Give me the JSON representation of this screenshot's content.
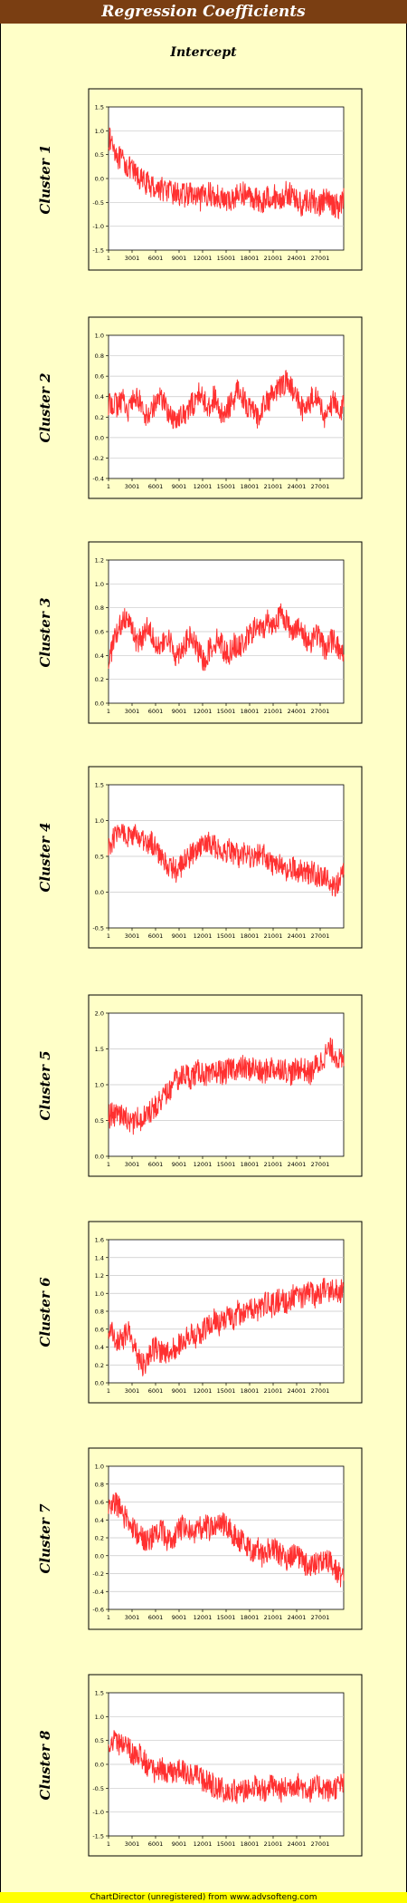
{
  "title": "Regression Coefficients",
  "subtitle": "Intercept",
  "footer": "ChartDirector (unregistered) from www.advsofteng.com",
  "colors": {
    "line": "#ff3030",
    "frame_bg": "#ffffc8",
    "title_bg": "#7a3e12"
  },
  "chart_data": [
    {
      "type": "line",
      "name": "Cluster 1",
      "x_ticks": [
        "1",
        "3001",
        "6001",
        "9001",
        "12001",
        "15001",
        "18001",
        "21001",
        "24001",
        "27001"
      ],
      "ylim": [
        -1.5,
        1.5
      ],
      "y_ticks": [
        "1.5",
        "1.0",
        "0.5",
        "0.0",
        "-0.5",
        "-1.0",
        "-1.5"
      ],
      "grid": true,
      "values": [
        0.85,
        0.7,
        0.45,
        0.35,
        0.25,
        0.15,
        0.05,
        -0.05,
        -0.1,
        -0.15,
        -0.2,
        -0.2,
        -0.25,
        -0.3,
        -0.3,
        -0.35,
        -0.35,
        -0.3,
        -0.4,
        -0.45,
        -0.35,
        -0.3,
        -0.4,
        -0.35,
        -0.45,
        -0.5,
        -0.4,
        -0.35,
        -0.3,
        -0.35,
        -0.4,
        -0.45,
        -0.5,
        -0.4,
        -0.35,
        -0.4,
        -0.45,
        -0.3,
        -0.35,
        -0.4,
        -0.55,
        -0.5,
        -0.45,
        -0.5,
        -0.55,
        -0.45,
        -0.5,
        -0.55,
        -0.6,
        -0.4
      ]
    },
    {
      "type": "line",
      "name": "Cluster 2",
      "x_ticks": [
        "1",
        "3001",
        "6001",
        "9001",
        "12001",
        "15001",
        "18001",
        "21001",
        "24001",
        "27001"
      ],
      "ylim": [
        -0.4,
        1.0
      ],
      "y_ticks": [
        "1.0",
        "0.8",
        "0.6",
        "0.4",
        "0.2",
        "0.0",
        "-0.2",
        "-0.4"
      ],
      "grid": true,
      "values": [
        0.3,
        0.35,
        0.3,
        0.4,
        0.25,
        0.35,
        0.4,
        0.3,
        0.2,
        0.3,
        0.35,
        0.4,
        0.3,
        0.2,
        0.15,
        0.25,
        0.2,
        0.3,
        0.35,
        0.45,
        0.35,
        0.3,
        0.4,
        0.25,
        0.2,
        0.3,
        0.35,
        0.5,
        0.4,
        0.3,
        0.25,
        0.2,
        0.3,
        0.35,
        0.4,
        0.45,
        0.5,
        0.55,
        0.5,
        0.4,
        0.3,
        0.25,
        0.35,
        0.45,
        0.3,
        0.2,
        0.3,
        0.35,
        0.25,
        0.3
      ]
    },
    {
      "type": "line",
      "name": "Cluster 3",
      "x_ticks": [
        "1",
        "3001",
        "6001",
        "9001",
        "12001",
        "15001",
        "18001",
        "21001",
        "24001",
        "27001"
      ],
      "ylim": [
        0.0,
        1.2
      ],
      "y_ticks": [
        "1.2",
        "1.0",
        "0.8",
        "0.6",
        "0.4",
        "0.2",
        "0.0"
      ],
      "grid": true,
      "values": [
        0.35,
        0.5,
        0.6,
        0.7,
        0.75,
        0.6,
        0.5,
        0.55,
        0.65,
        0.6,
        0.5,
        0.45,
        0.55,
        0.5,
        0.4,
        0.45,
        0.5,
        0.55,
        0.5,
        0.4,
        0.35,
        0.45,
        0.5,
        0.55,
        0.45,
        0.4,
        0.5,
        0.45,
        0.5,
        0.55,
        0.6,
        0.65,
        0.6,
        0.7,
        0.65,
        0.7,
        0.75,
        0.7,
        0.6,
        0.65,
        0.6,
        0.55,
        0.5,
        0.6,
        0.55,
        0.45,
        0.5,
        0.55,
        0.45,
        0.4
      ]
    },
    {
      "type": "line",
      "name": "Cluster 4",
      "x_ticks": [
        "1",
        "3001",
        "6001",
        "9001",
        "12001",
        "15001",
        "18001",
        "21001",
        "24001",
        "27001"
      ],
      "ylim": [
        -0.5,
        1.5
      ],
      "y_ticks": [
        "1.5",
        "1.0",
        "0.5",
        "0.0",
        "-0.5"
      ],
      "grid": true,
      "values": [
        0.6,
        0.75,
        0.8,
        0.85,
        0.8,
        0.75,
        0.8,
        0.7,
        0.65,
        0.7,
        0.6,
        0.5,
        0.4,
        0.35,
        0.3,
        0.35,
        0.45,
        0.5,
        0.55,
        0.6,
        0.65,
        0.7,
        0.65,
        0.6,
        0.55,
        0.6,
        0.55,
        0.5,
        0.55,
        0.5,
        0.45,
        0.5,
        0.55,
        0.45,
        0.4,
        0.4,
        0.35,
        0.3,
        0.35,
        0.3,
        0.3,
        0.25,
        0.3,
        0.25,
        0.2,
        0.2,
        0.15,
        0.1,
        0.15,
        0.25
      ]
    },
    {
      "type": "line",
      "name": "Cluster 5",
      "x_ticks": [
        "1",
        "3001",
        "6001",
        "9001",
        "12001",
        "15001",
        "18001",
        "21001",
        "24001",
        "27001"
      ],
      "ylim": [
        0.0,
        2.0
      ],
      "y_ticks": [
        "2.0",
        "1.5",
        "1.0",
        "0.5",
        "0.0"
      ],
      "grid": true,
      "values": [
        0.55,
        0.6,
        0.55,
        0.6,
        0.5,
        0.45,
        0.55,
        0.5,
        0.6,
        0.65,
        0.7,
        0.8,
        0.85,
        0.95,
        1.05,
        1.1,
        1.15,
        1.1,
        1.15,
        1.2,
        1.15,
        1.1,
        1.15,
        1.2,
        1.15,
        1.2,
        1.25,
        1.2,
        1.25,
        1.2,
        1.25,
        1.2,
        1.15,
        1.2,
        1.25,
        1.2,
        1.25,
        1.2,
        1.15,
        1.2,
        1.25,
        1.2,
        1.15,
        1.25,
        1.3,
        1.4,
        1.5,
        1.45,
        1.35,
        1.3
      ]
    },
    {
      "type": "line",
      "name": "Cluster 6",
      "x_ticks": [
        "1",
        "3001",
        "6001",
        "9001",
        "12001",
        "15001",
        "18001",
        "21001",
        "24001",
        "27001"
      ],
      "ylim": [
        0.0,
        1.6
      ],
      "y_ticks": [
        "1.6",
        "1.4",
        "1.2",
        "1.0",
        "0.8",
        "0.6",
        "0.4",
        "0.2",
        "0.0"
      ],
      "grid": true,
      "values": [
        0.6,
        0.55,
        0.45,
        0.5,
        0.6,
        0.45,
        0.3,
        0.2,
        0.25,
        0.35,
        0.4,
        0.35,
        0.3,
        0.35,
        0.4,
        0.45,
        0.5,
        0.55,
        0.5,
        0.55,
        0.6,
        0.65,
        0.7,
        0.65,
        0.7,
        0.75,
        0.7,
        0.8,
        0.75,
        0.8,
        0.85,
        0.8,
        0.85,
        0.9,
        0.85,
        0.9,
        0.95,
        0.9,
        0.95,
        1.0,
        0.95,
        1.0,
        1.0,
        0.95,
        1.0,
        1.05,
        1.0,
        1.05,
        1.0,
        1.05
      ]
    },
    {
      "type": "line",
      "name": "Cluster 7",
      "x_ticks": [
        "1",
        "3001",
        "6001",
        "9001",
        "12001",
        "15001",
        "18001",
        "21001",
        "24001",
        "27001"
      ],
      "ylim": [
        -0.6,
        1.0
      ],
      "y_ticks": [
        "1.0",
        "0.8",
        "0.6",
        "0.4",
        "0.2",
        "0.0",
        "-0.2",
        "-0.4",
        "-0.6"
      ],
      "grid": true,
      "values": [
        0.5,
        0.6,
        0.55,
        0.45,
        0.4,
        0.3,
        0.25,
        0.2,
        0.15,
        0.2,
        0.25,
        0.3,
        0.2,
        0.15,
        0.25,
        0.3,
        0.35,
        0.3,
        0.25,
        0.3,
        0.35,
        0.3,
        0.35,
        0.4,
        0.35,
        0.3,
        0.25,
        0.2,
        0.15,
        0.1,
        0.05,
        0.1,
        0.0,
        0.05,
        0.1,
        0.05,
        0.0,
        -0.05,
        0.0,
        0.05,
        -0.05,
        -0.1,
        -0.15,
        -0.1,
        -0.05,
        -0.1,
        -0.05,
        -0.15,
        -0.2,
        -0.25
      ]
    },
    {
      "type": "line",
      "name": "Cluster 8",
      "x_ticks": [
        "1",
        "3001",
        "6001",
        "9001",
        "12001",
        "15001",
        "18001",
        "21001",
        "24001",
        "27001"
      ],
      "ylim": [
        -1.5,
        1.5
      ],
      "y_ticks": [
        "1.5",
        "1.0",
        "0.5",
        "0.0",
        "-0.5",
        "-1.0",
        "-1.5"
      ],
      "grid": true,
      "values": [
        0.45,
        0.5,
        0.45,
        0.4,
        0.35,
        0.25,
        0.2,
        0.15,
        0.0,
        -0.1,
        -0.15,
        -0.1,
        -0.15,
        -0.2,
        -0.15,
        -0.1,
        -0.15,
        -0.2,
        -0.25,
        -0.3,
        -0.35,
        -0.4,
        -0.45,
        -0.5,
        -0.55,
        -0.5,
        -0.55,
        -0.6,
        -0.55,
        -0.5,
        -0.45,
        -0.5,
        -0.55,
        -0.5,
        -0.45,
        -0.5,
        -0.55,
        -0.5,
        -0.45,
        -0.4,
        -0.45,
        -0.5,
        -0.55,
        -0.5,
        -0.45,
        -0.5,
        -0.55,
        -0.5,
        -0.45,
        -0.4
      ]
    }
  ]
}
